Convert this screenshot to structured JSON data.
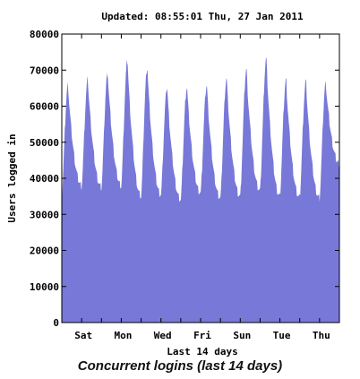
{
  "colors": {
    "fill": "#7878d8",
    "axis": "#000000",
    "background": "#ffffff"
  },
  "caption": "Concurrent logins (last 14 days)",
  "chart_data": {
    "type": "area",
    "title": "Updated: 08:55:01 Thu, 27 Jan 2011",
    "xlabel": "Last 14 days",
    "ylabel": "Users logged in",
    "ylim": [
      0,
      80000
    ],
    "yticks": [
      0,
      10000,
      20000,
      30000,
      40000,
      50000,
      60000,
      70000,
      80000
    ],
    "day_labels": [
      "Sat",
      "Mon",
      "Wed",
      "Fri",
      "Sun",
      "Tue",
      "Thu"
    ],
    "xlim_days": [
      0,
      14
    ],
    "day_label_positions": [
      1,
      3,
      5,
      7,
      9,
      11,
      13
    ],
    "grid": false,
    "legend": "none",
    "daily_peaks": [
      66000,
      67500,
      69500,
      73000,
      71000,
      65500,
      65500,
      66000,
      68000,
      70500,
      73500,
      67500,
      67000,
      66500
    ],
    "daily_troughs": [
      35000,
      38000,
      37500,
      38000,
      35000,
      35500,
      34000,
      36000,
      34500,
      35000,
      36500,
      35000,
      34500,
      34500,
      44000
    ]
  }
}
